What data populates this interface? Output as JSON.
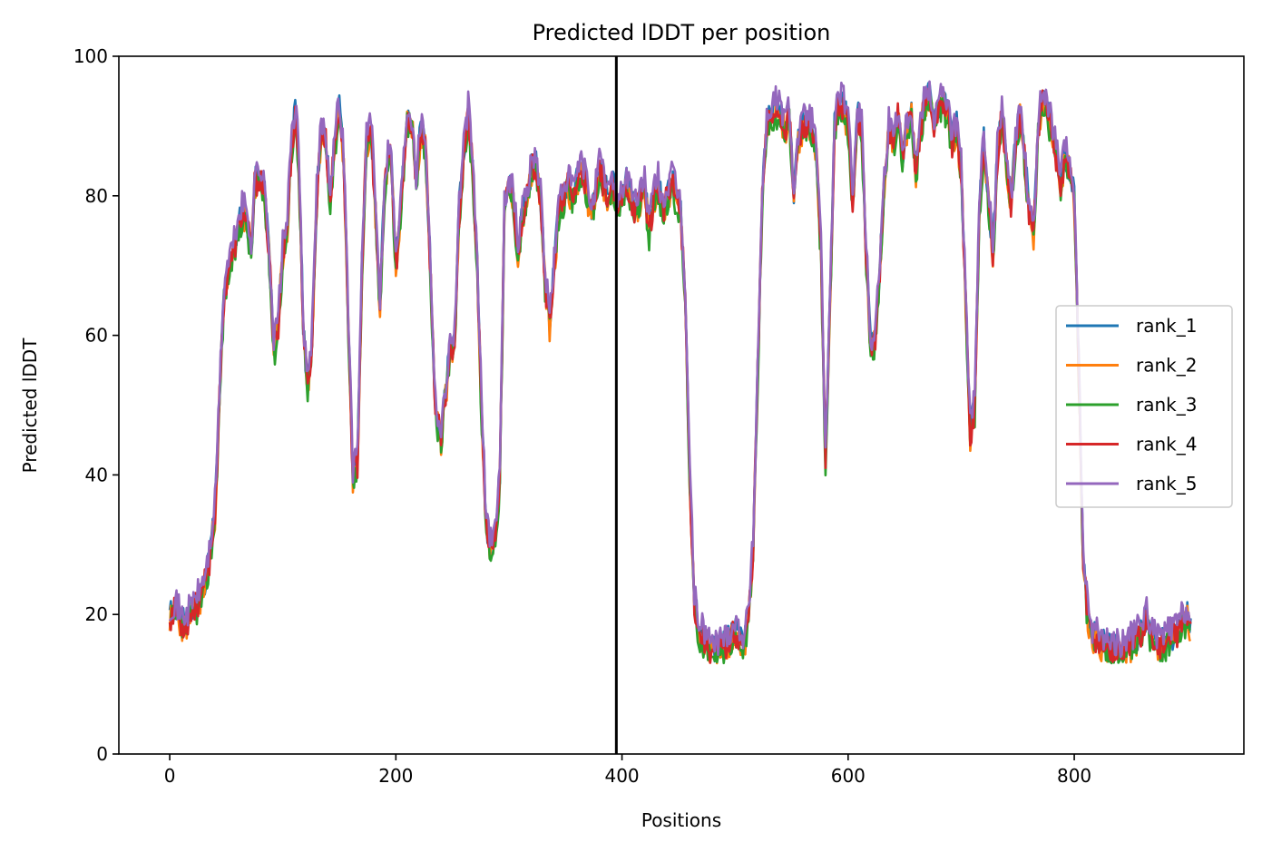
{
  "chart_data": {
    "type": "line",
    "title": "Predicted lDDT per position",
    "xlabel": "Positions",
    "ylabel": "Predicted lDDT",
    "xlim": [
      -45,
      950
    ],
    "ylim": [
      0,
      100
    ],
    "xticks": [
      "0",
      "200",
      "400",
      "600",
      "800"
    ],
    "xtick_values": [
      0,
      200,
      400,
      600,
      800
    ],
    "yticks": [
      "0",
      "20",
      "40",
      "60",
      "80",
      "100"
    ],
    "ytick_values": [
      0,
      20,
      40,
      60,
      80,
      100
    ],
    "vline_x": 395,
    "grid": false,
    "legend_position": "center-right",
    "base_profile": [
      [
        0,
        20
      ],
      [
        5,
        21
      ],
      [
        10,
        19
      ],
      [
        15,
        19
      ],
      [
        20,
        21
      ],
      [
        25,
        22
      ],
      [
        30,
        24
      ],
      [
        35,
        28
      ],
      [
        40,
        35
      ],
      [
        45,
        55
      ],
      [
        48,
        66
      ],
      [
        52,
        70
      ],
      [
        56,
        72
      ],
      [
        60,
        75
      ],
      [
        64,
        78
      ],
      [
        68,
        77
      ],
      [
        72,
        72
      ],
      [
        75,
        82
      ],
      [
        80,
        83
      ],
      [
        84,
        80
      ],
      [
        88,
        72
      ],
      [
        92,
        58
      ],
      [
        96,
        62
      ],
      [
        100,
        72
      ],
      [
        104,
        76
      ],
      [
        108,
        88
      ],
      [
        111,
        92
      ],
      [
        114,
        86
      ],
      [
        118,
        62
      ],
      [
        122,
        52
      ],
      [
        126,
        60
      ],
      [
        130,
        80
      ],
      [
        134,
        90
      ],
      [
        138,
        88
      ],
      [
        142,
        80
      ],
      [
        146,
        88
      ],
      [
        150,
        93
      ],
      [
        154,
        85
      ],
      [
        158,
        62
      ],
      [
        162,
        40
      ],
      [
        166,
        42
      ],
      [
        170,
        70
      ],
      [
        174,
        88
      ],
      [
        178,
        90
      ],
      [
        182,
        78
      ],
      [
        186,
        64
      ],
      [
        190,
        82
      ],
      [
        195,
        88
      ],
      [
        200,
        70
      ],
      [
        205,
        80
      ],
      [
        210,
        92
      ],
      [
        215,
        90
      ],
      [
        218,
        82
      ],
      [
        222,
        90
      ],
      [
        226,
        88
      ],
      [
        230,
        72
      ],
      [
        235,
        50
      ],
      [
        240,
        45
      ],
      [
        244,
        52
      ],
      [
        248,
        58
      ],
      [
        252,
        60
      ],
      [
        256,
        78
      ],
      [
        260,
        86
      ],
      [
        264,
        92
      ],
      [
        268,
        84
      ],
      [
        272,
        70
      ],
      [
        276,
        48
      ],
      [
        280,
        33
      ],
      [
        284,
        30
      ],
      [
        288,
        32
      ],
      [
        292,
        40
      ],
      [
        296,
        78
      ],
      [
        300,
        82
      ],
      [
        304,
        80
      ],
      [
        308,
        72
      ],
      [
        312,
        78
      ],
      [
        316,
        80
      ],
      [
        320,
        84
      ],
      [
        324,
        85
      ],
      [
        328,
        80
      ],
      [
        332,
        68
      ],
      [
        336,
        62
      ],
      [
        340,
        70
      ],
      [
        344,
        78
      ],
      [
        348,
        80
      ],
      [
        352,
        82
      ],
      [
        356,
        80
      ],
      [
        360,
        82
      ],
      [
        364,
        84
      ],
      [
        368,
        82
      ],
      [
        372,
        78
      ],
      [
        376,
        80
      ],
      [
        380,
        84
      ],
      [
        384,
        82
      ],
      [
        388,
        80
      ],
      [
        392,
        82
      ],
      [
        396,
        78
      ],
      [
        400,
        80
      ],
      [
        404,
        82
      ],
      [
        408,
        80
      ],
      [
        412,
        78
      ],
      [
        416,
        80
      ],
      [
        420,
        82
      ],
      [
        424,
        75
      ],
      [
        428,
        80
      ],
      [
        432,
        82
      ],
      [
        436,
        78
      ],
      [
        440,
        80
      ],
      [
        444,
        82
      ],
      [
        448,
        80
      ],
      [
        452,
        78
      ],
      [
        456,
        65
      ],
      [
        460,
        40
      ],
      [
        464,
        22
      ],
      [
        468,
        18
      ],
      [
        472,
        17
      ],
      [
        476,
        16
      ],
      [
        480,
        15
      ],
      [
        484,
        15
      ],
      [
        488,
        16
      ],
      [
        492,
        16
      ],
      [
        496,
        17
      ],
      [
        500,
        18
      ],
      [
        504,
        17
      ],
      [
        508,
        16
      ],
      [
        512,
        20
      ],
      [
        516,
        30
      ],
      [
        520,
        55
      ],
      [
        524,
        80
      ],
      [
        528,
        90
      ],
      [
        532,
        92
      ],
      [
        536,
        93
      ],
      [
        540,
        92
      ],
      [
        544,
        90
      ],
      [
        548,
        92
      ],
      [
        552,
        80
      ],
      [
        556,
        88
      ],
      [
        560,
        90
      ],
      [
        564,
        91
      ],
      [
        568,
        90
      ],
      [
        572,
        86
      ],
      [
        576,
        72
      ],
      [
        580,
        42
      ],
      [
        584,
        65
      ],
      [
        588,
        90
      ],
      [
        592,
        94
      ],
      [
        596,
        93
      ],
      [
        600,
        90
      ],
      [
        604,
        80
      ],
      [
        608,
        92
      ],
      [
        612,
        90
      ],
      [
        616,
        72
      ],
      [
        620,
        58
      ],
      [
        624,
        60
      ],
      [
        628,
        70
      ],
      [
        632,
        82
      ],
      [
        636,
        90
      ],
      [
        640,
        88
      ],
      [
        644,
        92
      ],
      [
        648,
        86
      ],
      [
        652,
        90
      ],
      [
        656,
        92
      ],
      [
        660,
        84
      ],
      [
        664,
        90
      ],
      [
        668,
        94
      ],
      [
        672,
        95
      ],
      [
        676,
        90
      ],
      [
        680,
        93
      ],
      [
        684,
        94
      ],
      [
        688,
        92
      ],
      [
        692,
        88
      ],
      [
        696,
        90
      ],
      [
        700,
        84
      ],
      [
        704,
        65
      ],
      [
        708,
        46
      ],
      [
        712,
        50
      ],
      [
        716,
        78
      ],
      [
        720,
        88
      ],
      [
        724,
        80
      ],
      [
        728,
        72
      ],
      [
        732,
        86
      ],
      [
        736,
        92
      ],
      [
        740,
        85
      ],
      [
        744,
        78
      ],
      [
        748,
        88
      ],
      [
        752,
        92
      ],
      [
        756,
        86
      ],
      [
        760,
        78
      ],
      [
        764,
        74
      ],
      [
        768,
        90
      ],
      [
        772,
        94
      ],
      [
        776,
        92
      ],
      [
        780,
        90
      ],
      [
        784,
        86
      ],
      [
        788,
        82
      ],
      [
        792,
        86
      ],
      [
        796,
        84
      ],
      [
        800,
        80
      ],
      [
        804,
        55
      ],
      [
        808,
        28
      ],
      [
        812,
        20
      ],
      [
        816,
        17
      ],
      [
        820,
        17
      ],
      [
        824,
        16
      ],
      [
        828,
        16
      ],
      [
        832,
        15
      ],
      [
        836,
        15
      ],
      [
        840,
        15
      ],
      [
        844,
        15
      ],
      [
        848,
        16
      ],
      [
        852,
        16
      ],
      [
        856,
        17
      ],
      [
        860,
        18
      ],
      [
        864,
        20
      ],
      [
        868,
        17
      ],
      [
        872,
        16
      ],
      [
        876,
        16
      ],
      [
        880,
        16
      ],
      [
        884,
        17
      ],
      [
        888,
        17
      ],
      [
        892,
        18
      ],
      [
        896,
        19
      ],
      [
        900,
        20
      ],
      [
        903,
        18
      ]
    ],
    "series": [
      {
        "name": "rank_1",
        "color": "#1f77b4",
        "offset": 0.0,
        "seed": 11
      },
      {
        "name": "rank_2",
        "color": "#ff7f0e",
        "offset": -0.8,
        "seed": 23
      },
      {
        "name": "rank_3",
        "color": "#2ca02c",
        "offset": -1.2,
        "seed": 37
      },
      {
        "name": "rank_4",
        "color": "#d62728",
        "offset": -0.4,
        "seed": 53
      },
      {
        "name": "rank_5",
        "color": "#9467bd",
        "offset": 1.0,
        "seed": 71
      }
    ]
  }
}
